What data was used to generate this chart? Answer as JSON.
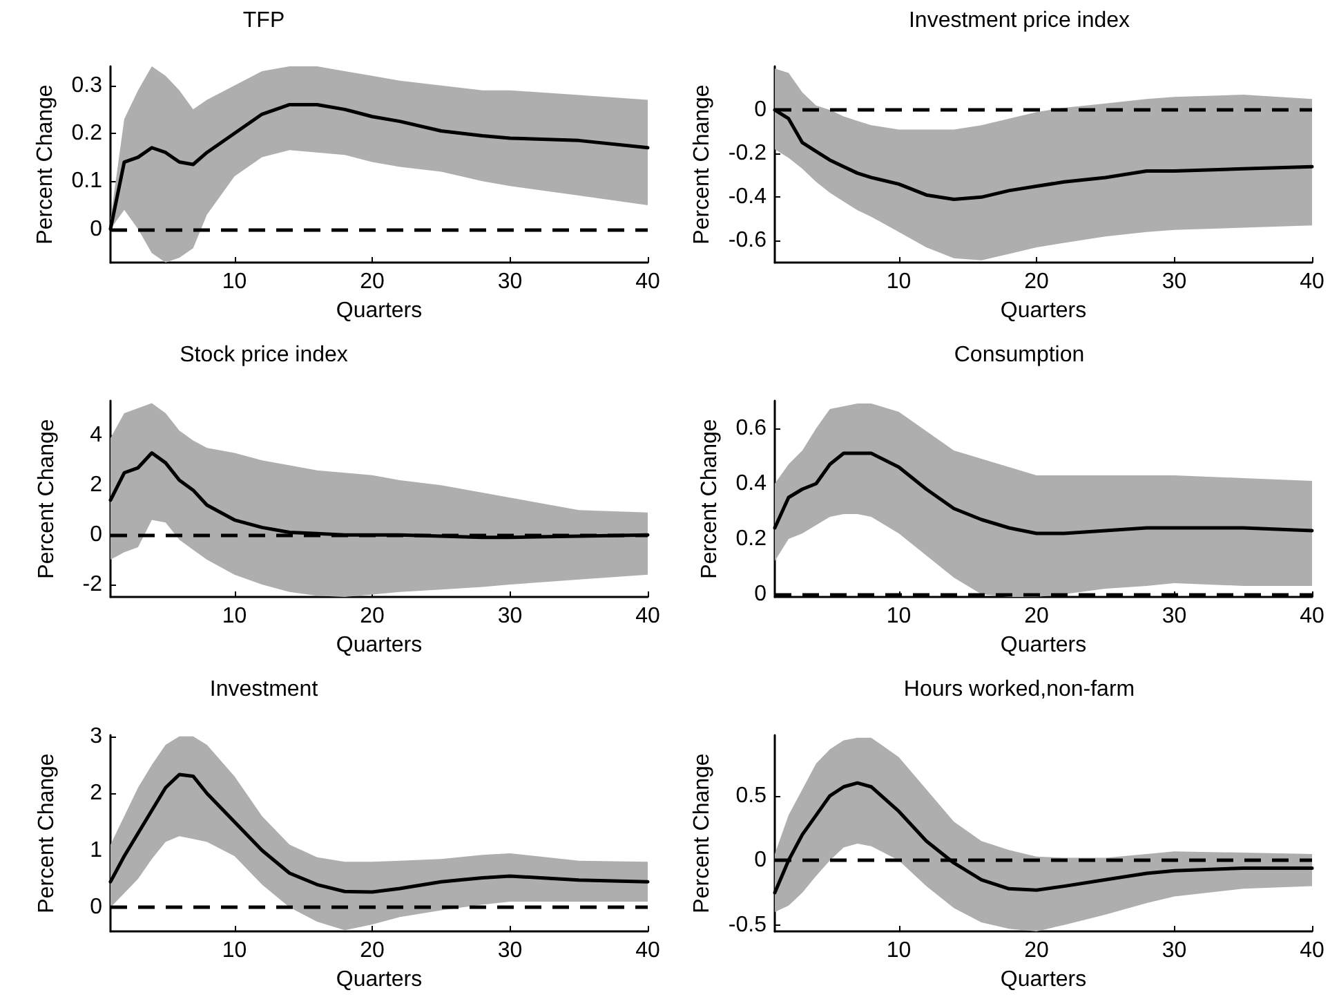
{
  "chart_data": [
    {
      "type": "line",
      "title": "TFP",
      "xlabel": "Quarters",
      "ylabel": "Percent Change",
      "xlim": [
        1,
        40
      ],
      "xticks": [
        10,
        20,
        30,
        40
      ],
      "ylim": [
        -0.07,
        0.34
      ],
      "yticks": [
        0,
        0.1,
        0.2,
        0.3
      ],
      "line_style": "solid",
      "marker": "none",
      "x": [
        1,
        2,
        3,
        4,
        5,
        6,
        7,
        8,
        10,
        12,
        14,
        16,
        18,
        20,
        22,
        25,
        28,
        30,
        35,
        40
      ],
      "series": [
        {
          "color": "#000000",
          "values": [
            0,
            0.14,
            0.15,
            0.17,
            0.16,
            0.14,
            0.135,
            0.16,
            0.2,
            0.24,
            0.26,
            0.26,
            0.25,
            0.235,
            0.225,
            0.205,
            0.195,
            0.19,
            0.185,
            0.17
          ],
          "upper": [
            0.02,
            0.23,
            0.29,
            0.34,
            0.32,
            0.29,
            0.25,
            0.27,
            0.3,
            0.33,
            0.34,
            0.34,
            0.33,
            0.32,
            0.31,
            0.3,
            0.29,
            0.29,
            0.28,
            0.27
          ],
          "lower": [
            0,
            0.04,
            0,
            -0.05,
            -0.07,
            -0.06,
            -0.04,
            0.03,
            0.11,
            0.15,
            0.165,
            0.16,
            0.155,
            0.14,
            0.13,
            0.12,
            0.1,
            0.09,
            0.07,
            0.05
          ]
        }
      ],
      "ref_lines": [
        {
          "axis": "y",
          "value": 0,
          "color": "#000000",
          "line_style": "dashed"
        }
      ]
    },
    {
      "type": "line",
      "title": "Investment price index",
      "xlabel": "Quarters",
      "ylabel": "Percent Change",
      "xlim": [
        1,
        40
      ],
      "xticks": [
        10,
        20,
        30,
        40
      ],
      "ylim": [
        -0.7,
        0.2
      ],
      "yticks": [
        -0.6,
        -0.4,
        -0.2,
        0
      ],
      "line_style": "solid",
      "marker": "none",
      "x": [
        1,
        2,
        3,
        4,
        5,
        6,
        7,
        8,
        10,
        12,
        14,
        16,
        18,
        20,
        22,
        25,
        28,
        30,
        35,
        40
      ],
      "series": [
        {
          "color": "#000000",
          "values": [
            0,
            -0.04,
            -0.15,
            -0.19,
            -0.23,
            -0.26,
            -0.29,
            -0.31,
            -0.34,
            -0.39,
            -0.41,
            -0.4,
            -0.37,
            -0.35,
            -0.33,
            -0.31,
            -0.28,
            -0.28,
            -0.27,
            -0.26
          ],
          "upper": [
            0.19,
            0.17,
            0.08,
            0.02,
            0,
            -0.03,
            -0.05,
            -0.07,
            -0.09,
            -0.09,
            -0.09,
            -0.07,
            -0.04,
            -0.01,
            0.01,
            0.03,
            0.05,
            0.06,
            0.07,
            0.05
          ],
          "lower": [
            -0.18,
            -0.22,
            -0.27,
            -0.33,
            -0.38,
            -0.42,
            -0.46,
            -0.49,
            -0.56,
            -0.63,
            -0.68,
            -0.69,
            -0.66,
            -0.63,
            -0.61,
            -0.58,
            -0.56,
            -0.55,
            -0.54,
            -0.53
          ]
        }
      ],
      "ref_lines": [
        {
          "axis": "y",
          "value": 0,
          "color": "#000000",
          "line_style": "dashed"
        }
      ]
    },
    {
      "type": "line",
      "title": "Stock price index",
      "xlabel": "Quarters",
      "ylabel": "Percent Change",
      "xlim": [
        1,
        40
      ],
      "xticks": [
        10,
        20,
        30,
        40
      ],
      "ylim": [
        -2.5,
        5.4
      ],
      "yticks": [
        -2,
        0,
        2,
        4
      ],
      "line_style": "solid",
      "marker": "none",
      "x": [
        1,
        2,
        3,
        4,
        5,
        6,
        7,
        8,
        10,
        12,
        14,
        16,
        18,
        20,
        22,
        25,
        28,
        30,
        35,
        40
      ],
      "series": [
        {
          "color": "#000000",
          "values": [
            1.4,
            2.5,
            2.7,
            3.3,
            2.9,
            2.2,
            1.8,
            1.2,
            0.6,
            0.3,
            0.1,
            0.05,
            0,
            0,
            0,
            -0.05,
            -0.1,
            -0.1,
            -0.05,
            0
          ],
          "upper": [
            3.9,
            4.9,
            5.1,
            5.3,
            4.9,
            4.2,
            3.8,
            3.5,
            3.3,
            3,
            2.8,
            2.6,
            2.5,
            2.4,
            2.2,
            2,
            1.7,
            1.5,
            1,
            0.9
          ],
          "lower": [
            -1,
            -0.7,
            -0.5,
            0.6,
            0.5,
            -0.2,
            -0.6,
            -1,
            -1.6,
            -2,
            -2.3,
            -2.45,
            -2.5,
            -2.4,
            -2.3,
            -2.2,
            -2.1,
            -2,
            -1.8,
            -1.6
          ]
        }
      ],
      "ref_lines": [
        {
          "axis": "y",
          "value": 0,
          "color": "#000000",
          "line_style": "dashed"
        }
      ]
    },
    {
      "type": "line",
      "title": "Consumption",
      "xlabel": "Quarters",
      "ylabel": "Percent Change",
      "xlim": [
        1,
        40
      ],
      "xticks": [
        10,
        20,
        30,
        40
      ],
      "ylim": [
        -0.01,
        0.7
      ],
      "yticks": [
        0,
        0.2,
        0.4,
        0.6
      ],
      "line_style": "solid",
      "marker": "none",
      "x": [
        1,
        2,
        3,
        4,
        5,
        6,
        7,
        8,
        10,
        12,
        14,
        16,
        18,
        20,
        22,
        25,
        28,
        30,
        35,
        40
      ],
      "series": [
        {
          "color": "#000000",
          "values": [
            0.24,
            0.35,
            0.38,
            0.4,
            0.47,
            0.51,
            0.51,
            0.51,
            0.46,
            0.38,
            0.31,
            0.27,
            0.24,
            0.22,
            0.22,
            0.23,
            0.24,
            0.24,
            0.24,
            0.23
          ],
          "upper": [
            0.4,
            0.47,
            0.52,
            0.6,
            0.67,
            0.68,
            0.69,
            0.69,
            0.66,
            0.59,
            0.52,
            0.49,
            0.46,
            0.43,
            0.43,
            0.43,
            0.43,
            0.43,
            0.42,
            0.41
          ],
          "lower": [
            0.12,
            0.2,
            0.22,
            0.25,
            0.28,
            0.29,
            0.29,
            0.28,
            0.22,
            0.14,
            0.06,
            0,
            -0.01,
            -0.01,
            0,
            0.02,
            0.03,
            0.04,
            0.03,
            0.03
          ]
        }
      ],
      "ref_lines": [
        {
          "axis": "y",
          "value": 0,
          "color": "#000000",
          "line_style": "dashed"
        }
      ]
    },
    {
      "type": "line",
      "title": "Investment",
      "xlabel": "Quarters",
      "ylabel": "Percent Change",
      "xlim": [
        1,
        40
      ],
      "xticks": [
        10,
        20,
        30,
        40
      ],
      "ylim": [
        -0.42,
        3.02
      ],
      "yticks": [
        0,
        1,
        2,
        3
      ],
      "line_style": "solid",
      "marker": "none",
      "x": [
        1,
        2,
        3,
        4,
        5,
        6,
        7,
        8,
        10,
        12,
        14,
        16,
        18,
        20,
        22,
        25,
        28,
        30,
        35,
        40
      ],
      "series": [
        {
          "color": "#000000",
          "values": [
            0.45,
            0.9,
            1.3,
            1.7,
            2.1,
            2.33,
            2.3,
            2,
            1.5,
            1,
            0.6,
            0.4,
            0.28,
            0.27,
            0.33,
            0.45,
            0.52,
            0.55,
            0.48,
            0.45
          ],
          "upper": [
            1.1,
            1.6,
            2.1,
            2.5,
            2.85,
            3,
            3,
            2.85,
            2.3,
            1.6,
            1.1,
            0.88,
            0.8,
            0.8,
            0.82,
            0.85,
            0.92,
            0.95,
            0.82,
            0.8
          ],
          "lower": [
            0,
            0.25,
            0.5,
            0.85,
            1.15,
            1.25,
            1.2,
            1.15,
            0.9,
            0.4,
            0,
            -0.25,
            -0.4,
            -0.3,
            -0.17,
            -0.05,
            0.05,
            0.1,
            0.1,
            0.1
          ]
        }
      ],
      "ref_lines": [
        {
          "axis": "y",
          "value": 0,
          "color": "#000000",
          "line_style": "dashed"
        }
      ]
    },
    {
      "type": "line",
      "title": "Hours worked,non-farm",
      "xlabel": "Quarters",
      "ylabel": "Percent Change",
      "xlim": [
        1,
        40
      ],
      "xticks": [
        10,
        20,
        30,
        40
      ],
      "ylim": [
        -0.55,
        0.97
      ],
      "yticks": [
        -0.5,
        0,
        0.5
      ],
      "line_style": "solid",
      "marker": "none",
      "x": [
        1,
        2,
        3,
        4,
        5,
        6,
        7,
        8,
        10,
        12,
        14,
        16,
        18,
        20,
        22,
        25,
        28,
        30,
        35,
        40
      ],
      "series": [
        {
          "color": "#000000",
          "values": [
            -0.25,
            0,
            0.2,
            0.35,
            0.5,
            0.57,
            0.6,
            0.57,
            0.38,
            0.15,
            -0.02,
            -0.15,
            -0.22,
            -0.23,
            -0.2,
            -0.15,
            -0.1,
            -0.08,
            -0.06,
            -0.06
          ],
          "upper": [
            0.05,
            0.35,
            0.55,
            0.75,
            0.86,
            0.93,
            0.95,
            0.95,
            0.8,
            0.55,
            0.3,
            0.15,
            0.08,
            0.03,
            0.02,
            0.02,
            0.05,
            0.07,
            0.06,
            0.05
          ],
          "lower": [
            -0.4,
            -0.35,
            -0.25,
            -0.12,
            0,
            0.1,
            0.13,
            0.11,
            0,
            -0.2,
            -0.37,
            -0.48,
            -0.53,
            -0.55,
            -0.5,
            -0.42,
            -0.33,
            -0.28,
            -0.22,
            -0.2
          ]
        }
      ],
      "ref_lines": [
        {
          "axis": "y",
          "value": 0,
          "color": "#000000",
          "line_style": "dashed"
        }
      ]
    }
  ]
}
